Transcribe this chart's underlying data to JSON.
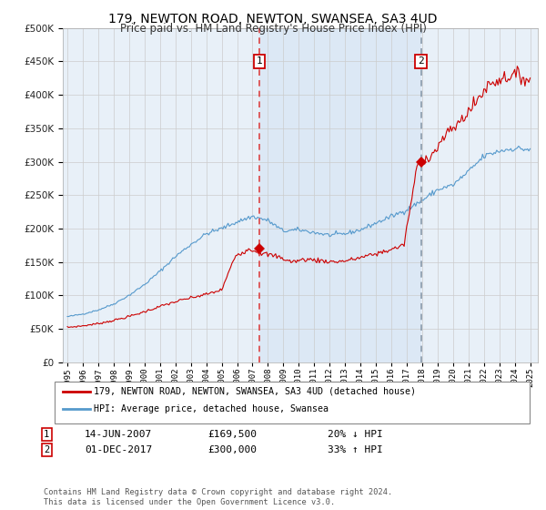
{
  "title": "179, NEWTON ROAD, NEWTON, SWANSEA, SA3 4UD",
  "subtitle": "Price paid vs. HM Land Registry's House Price Index (HPI)",
  "legend_line1": "179, NEWTON ROAD, NEWTON, SWANSEA, SA3 4UD (detached house)",
  "legend_line2": "HPI: Average price, detached house, Swansea",
  "transaction1_date": "14-JUN-2007",
  "transaction1_price": 169500,
  "transaction1_label": "£169,500",
  "transaction1_pct": "20% ↓ HPI",
  "transaction2_date": "01-DEC-2017",
  "transaction2_price": 300000,
  "transaction2_label": "£300,000",
  "transaction2_pct": "33% ↑ HPI",
  "transaction1_year": 2007.45,
  "transaction2_year": 2017.92,
  "note": "Contains HM Land Registry data © Crown copyright and database right 2024.\nThis data is licensed under the Open Government Licence v3.0.",
  "red_color": "#cc0000",
  "blue_color": "#5599cc",
  "shade_color": "#dce8f5",
  "bg_color": "#e8f0f8",
  "vline1_color": "#dd4444",
  "vline2_color": "#8899aa",
  "ylim": [
    0,
    500000
  ],
  "xlim_start": 1995.0,
  "xlim_end": 2025.5
}
